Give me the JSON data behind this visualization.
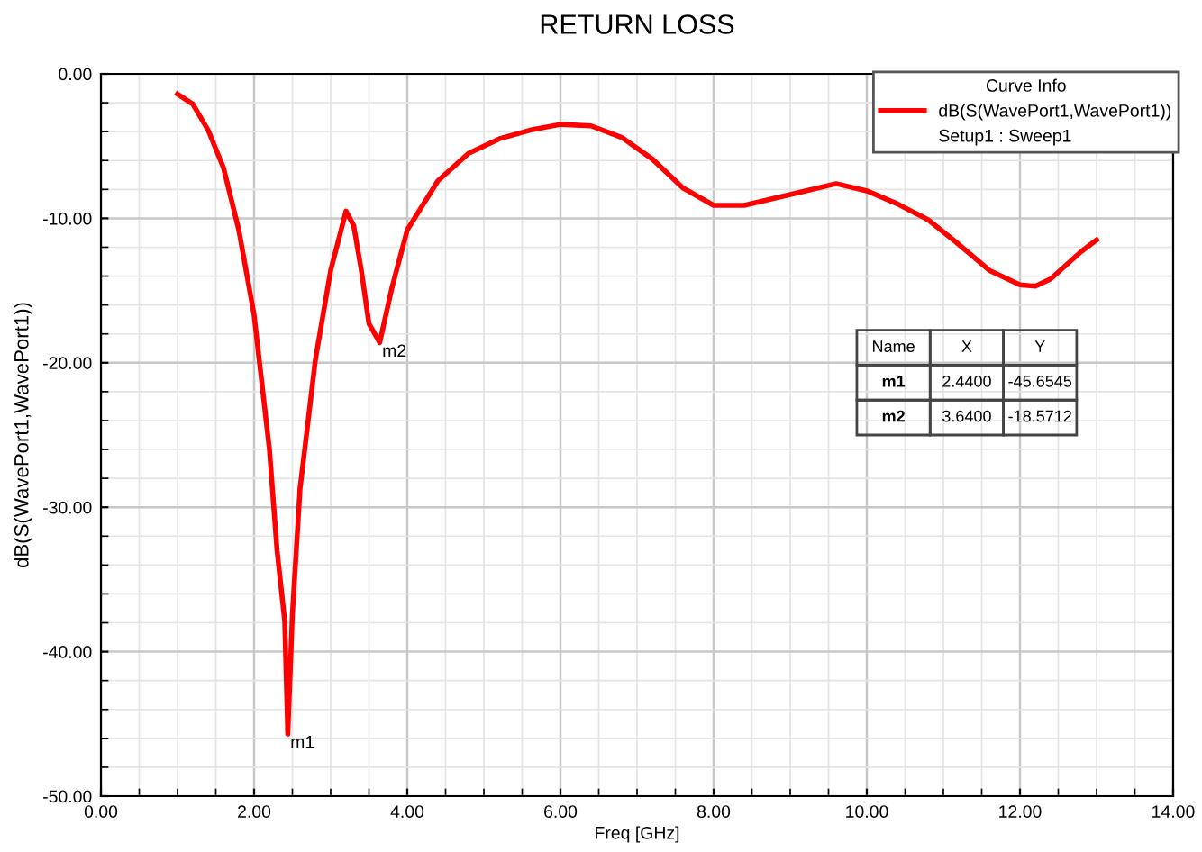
{
  "chart_data": {
    "type": "line",
    "title": "RETURN LOSS",
    "xlabel": "Freq [GHz]",
    "ylabel": "dB(S(WavePort1,WavePort1))",
    "legend_title": "Curve Info",
    "legend": "top right",
    "grid": true,
    "line_style": "solid",
    "marker": "none",
    "xlim": [
      0,
      14
    ],
    "ylim": [
      -50,
      0
    ],
    "xticks": [
      {
        "value": 0,
        "label": "0.00"
      },
      {
        "value": 2,
        "label": "2.00"
      },
      {
        "value": 4,
        "label": "4.00"
      },
      {
        "value": 6,
        "label": "6.00"
      },
      {
        "value": 8,
        "label": "8.00"
      },
      {
        "value": 10,
        "label": "10.00"
      },
      {
        "value": 12,
        "label": "12.00"
      },
      {
        "value": 14,
        "label": "14.00"
      }
    ],
    "yticks": [
      {
        "value": -50,
        "label": "-50.00"
      },
      {
        "value": -40,
        "label": "-40.00"
      },
      {
        "value": -30,
        "label": "-30.00"
      },
      {
        "value": -20,
        "label": "-20.00"
      },
      {
        "value": -10,
        "label": "-10.00"
      },
      {
        "value": 0,
        "label": "0.00"
      }
    ],
    "series": [
      {
        "name": "dB(S(WavePort1,WavePort1))",
        "color": "#ff0000",
        "x": [
          1.0,
          1.2,
          1.4,
          1.6,
          1.8,
          2.0,
          2.2,
          2.3,
          2.4,
          2.44,
          2.5,
          2.6,
          2.8,
          3.0,
          3.2,
          3.3,
          3.4,
          3.5,
          3.64,
          3.8,
          4.0,
          4.4,
          4.8,
          5.2,
          5.6,
          6.0,
          6.4,
          6.8,
          7.2,
          7.6,
          8.0,
          8.4,
          8.8,
          9.2,
          9.6,
          10.0,
          10.4,
          10.8,
          11.2,
          11.6,
          12.0,
          12.2,
          12.4,
          12.8,
          13.0
        ],
        "values": [
          -1.4,
          -2.1,
          -3.9,
          -6.5,
          -10.8,
          -16.7,
          -26,
          -33,
          -37.9,
          -45.7,
          -37.4,
          -28.7,
          -19.8,
          -13.6,
          -9.5,
          -10.5,
          -13.6,
          -17.3,
          -18.6,
          -14.8,
          -10.8,
          -7.4,
          -5.5,
          -4.5,
          -3.9,
          -3.5,
          -3.6,
          -4.4,
          -5.9,
          -7.9,
          -9.1,
          -9.1,
          -8.6,
          -8.1,
          -7.6,
          -8.1,
          -9.0,
          -10.1,
          -11.8,
          -13.6,
          -14.6,
          -14.7,
          -14.2,
          -12.3,
          -11.5
        ]
      }
    ],
    "annotations": [
      {
        "text": "m1",
        "x": 2.44,
        "y": -45.6545
      },
      {
        "text": "m2",
        "x": 3.64,
        "y": -18.5712
      },
      "Setup1 : Sweep1",
      "Name",
      "X",
      "Y",
      "m1",
      "2.4400",
      "-45.6545",
      "m2",
      "3.6400",
      "-18.5712"
    ]
  }
}
